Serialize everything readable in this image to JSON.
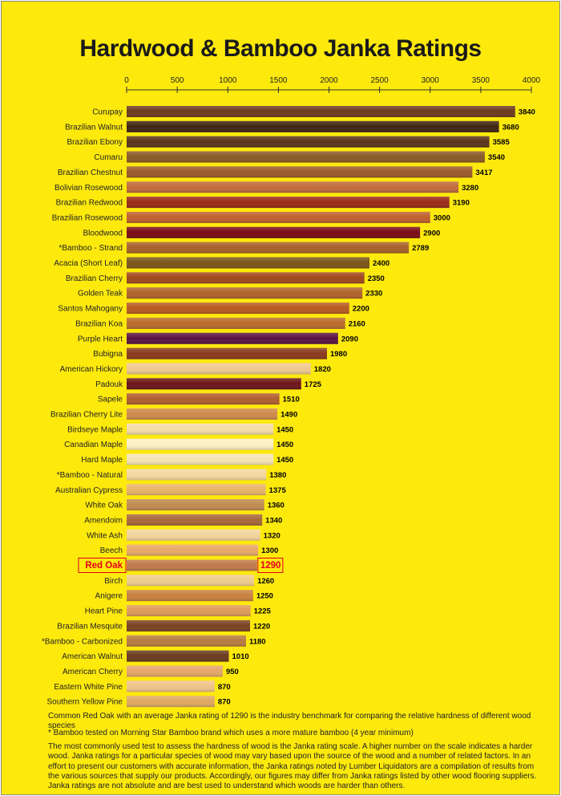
{
  "chart_data": {
    "type": "bar",
    "orientation": "horizontal",
    "title": "Hardwood & Bamboo Janka Ratings",
    "xlim": [
      0,
      4000
    ],
    "x_ticks": [
      "0",
      "500",
      "1000",
      "1500",
      "2000",
      "2500",
      "3000",
      "3500",
      "4000"
    ],
    "grid": false,
    "highlight": "Red Oak",
    "categories": [
      "Curupay",
      "Brazilian Walnut",
      "Brazilian Ebony",
      "Cumaru",
      "Brazilian Chestnut",
      "Bolivian Rosewood",
      "Brazilian Redwood",
      "Brazilian Rosewood",
      "Bloodwood",
      "*Bamboo - Strand",
      "Acacia (Short Leaf)",
      "Brazilian Cherry",
      "Golden Teak",
      "Santos Mahogany",
      "Brazilian Koa",
      "Purple Heart",
      "Bubigna",
      "American Hickory",
      "Padouk",
      "Sapele",
      "Brazilian Cherry Lite",
      "Birdseye Maple",
      "Canadian Maple",
      "Hard Maple",
      "*Bamboo - Natural",
      "Australian Cypress",
      "White Oak",
      "Amendoim",
      "White Ash",
      "Beech",
      "Red Oak",
      "Birch",
      "Anigere",
      "Heart Pine",
      "Brazilian Mesquite",
      "*Bamboo - Carbonized",
      "American Walnut",
      "American Cherry",
      "Eastern White Pine",
      "Southern Yellow Pine"
    ],
    "values": [
      3840,
      3680,
      3585,
      3540,
      3417,
      3280,
      3190,
      3000,
      2900,
      2789,
      2400,
      2350,
      2330,
      2200,
      2160,
      2090,
      1980,
      1820,
      1725,
      1510,
      1490,
      1450,
      1450,
      1450,
      1380,
      1375,
      1360,
      1340,
      1320,
      1300,
      1290,
      1260,
      1250,
      1225,
      1220,
      1180,
      1010,
      950,
      870,
      870
    ],
    "bar_colors": [
      "#6e3a1c",
      "#3f2412",
      "#5a3418",
      "#8a5a26",
      "#9c5a28",
      "#c06a3a",
      "#9a2a18",
      "#c0602e",
      "#7a0a14",
      "#a86028",
      "#7a5418",
      "#a0481e",
      "#b0622a",
      "#b85a22",
      "#b86a2a",
      "#5a1244",
      "#8a3a1c",
      "#f0c890",
      "#6a1418",
      "#b05e2e",
      "#d08a4a",
      "#f4dca8",
      "#fbf0c4",
      "#f6e4b4",
      "#f4d8a0",
      "#e8b46a",
      "#c08a50",
      "#a8683a",
      "#f2d49c",
      "#e8a868",
      "#c07a4c",
      "#f0cc8c",
      "#c88040",
      "#e09a58",
      "#7a4220",
      "#b87a40",
      "#6a3a1e",
      "#e6a66a",
      "#f0c488",
      "#e0a860"
    ],
    "value_color": "#000000",
    "highlight_color": "#e3001b",
    "background": "#fde90c"
  },
  "notes": {
    "line1": "Common Red Oak with an average Janka rating of 1290 is the industry benchmark for comparing the relative hardness of different wood species",
    "line2": "* Bamboo tested on Morning Star Bamboo brand which uses a more mature bamboo (4 year minimum)",
    "line3": "The most commonly used test to assess the hardness of wood is the Janka rating scale. A higher number on the scale indicates a harder wood. Janka ratings for a particular species of wood may vary based upon the source of the wood and a number of related factors.  In an effort to present our customers with accurate information, the Janka ratings noted by Lumber Liquidators are a compilation of results from the various sources that supply our products.  Accordingly, our figures may differ from Janka ratings listed by other wood flooring suppliers.  Janka ratings are not absolute and are best used to understand which woods are harder than others."
  }
}
